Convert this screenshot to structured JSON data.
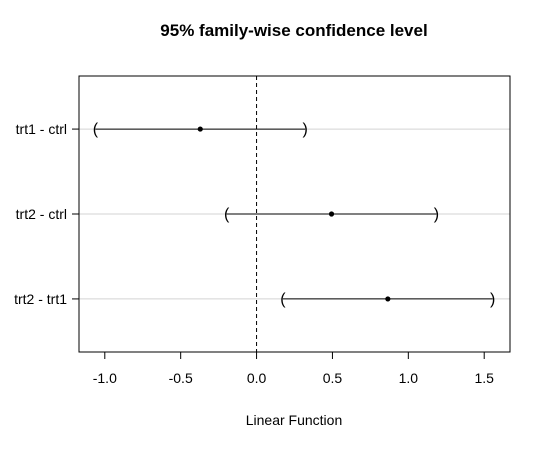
{
  "chart_data": {
    "type": "interval",
    "title": "95% family-wise confidence level",
    "xlabel": "Linear Function",
    "ylabel": "",
    "xlim": [
      -1.17,
      1.67
    ],
    "xticks": [
      -1.0,
      -0.5,
      0.0,
      0.5,
      1.0,
      1.5
    ],
    "xtick_labels": [
      "-1.0",
      "-0.5",
      "0.0",
      "0.5",
      "1.0",
      "1.5"
    ],
    "reference_line": 0,
    "grid": "horizontal lines at each comparison",
    "intervals": [
      {
        "label": "trt1 - ctrl",
        "estimate": -0.371,
        "lower": -1.062,
        "upper": 0.32
      },
      {
        "label": "trt2 - ctrl",
        "estimate": 0.494,
        "lower": -0.197,
        "upper": 1.185
      },
      {
        "label": "trt2 - trt1",
        "estimate": 0.865,
        "lower": 0.174,
        "upper": 1.556
      }
    ]
  }
}
